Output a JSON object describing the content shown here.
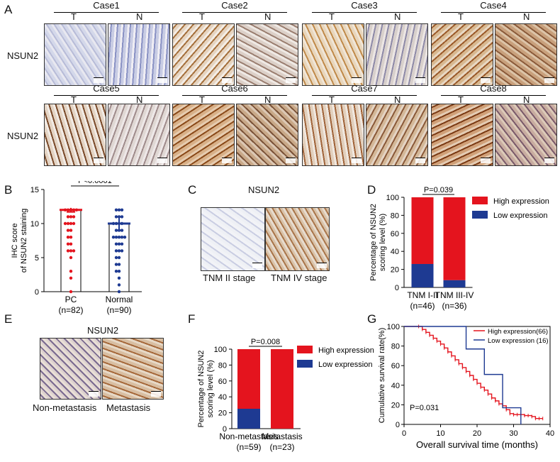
{
  "panel_letters": [
    "A",
    "B",
    "C",
    "D",
    "E",
    "F",
    "G"
  ],
  "panelA": {
    "row_label": "NSUN2",
    "t_label": "T",
    "n_label": "N",
    "cases": [
      "Case1",
      "Case2",
      "Case3",
      "Case4",
      "Case5",
      "Case6",
      "Case7",
      "Case8"
    ]
  },
  "panelC": {
    "title": "NSUN2",
    "labels": [
      "TNM II stage",
      "TNM IV stage"
    ]
  },
  "panelE": {
    "title": "NSUN2",
    "labels": [
      "Non-metastasis",
      "Metastasis"
    ]
  },
  "colors": {
    "high": "#e4141e",
    "low": "#1e3a92",
    "stain_brown": "#9a5a2a",
    "stain_blue": "#6f78b4"
  },
  "chart_data": [
    {
      "id": "B",
      "type": "scatter",
      "ylabel": "IHC score of NSUN2 staining",
      "ylabel_lines": [
        "IHC score",
        "of NSUN2 staining"
      ],
      "ylim": [
        0,
        15
      ],
      "yticks": [
        "0",
        "5",
        "10",
        "15"
      ],
      "categories": [
        "PC",
        "Normal"
      ],
      "category_n": [
        "(n=82)",
        "(n=90)"
      ],
      "p_label": "P<0.0001",
      "series": [
        {
          "name": "PC",
          "mean": 12,
          "error": 0.3,
          "values": [
            12,
            12,
            12,
            12,
            12,
            11,
            11,
            11,
            10,
            10,
            10,
            10,
            9,
            9,
            8,
            8,
            7,
            7,
            6,
            6,
            6,
            5,
            3,
            2,
            0
          ]
        },
        {
          "name": "Normal",
          "mean": 10,
          "error": 1.0,
          "values": [
            12,
            12,
            12,
            11,
            11,
            11,
            10,
            10,
            10,
            10,
            9,
            9,
            9,
            8,
            8,
            8,
            8,
            8,
            7,
            7,
            7,
            6,
            6,
            6,
            5,
            5,
            4,
            4,
            3,
            3,
            2,
            1,
            0
          ]
        }
      ]
    },
    {
      "id": "D",
      "type": "bar",
      "stacked": true,
      "ylabel": "Percentage of NSUN2 scoring level (%)",
      "ylabel_lines": [
        "Percentage of NSUN2",
        "scoring level (%)"
      ],
      "ylim": [
        0,
        100
      ],
      "yticks": [
        "0",
        "20",
        "40",
        "60",
        "80",
        "100"
      ],
      "categories": [
        "TNM I-II",
        "TNM III-IV"
      ],
      "category_n": [
        "(n=46)",
        "(n=36)"
      ],
      "p_label": "P=0.039",
      "legend": [
        "High expression",
        "Low expression"
      ],
      "series": [
        {
          "name": "Low expression",
          "values": [
            26,
            8
          ]
        },
        {
          "name": "High expression",
          "values": [
            74,
            92
          ]
        }
      ]
    },
    {
      "id": "F",
      "type": "bar",
      "stacked": true,
      "ylabel": "Percentage of NSUN2 scoring level (%)",
      "ylabel_lines": [
        "Percentage of NSUN2",
        "scoring level (%)"
      ],
      "ylim": [
        0,
        100
      ],
      "yticks": [
        "0",
        "20",
        "40",
        "60",
        "80",
        "100"
      ],
      "categories": [
        "Non-metastasis",
        "Metastasis"
      ],
      "category_n": [
        "(n=59)",
        "(n=23)"
      ],
      "p_label": "P=0.008",
      "legend": [
        "High expression",
        "Low expression"
      ],
      "series": [
        {
          "name": "Low expression",
          "values": [
            25,
            0
          ]
        },
        {
          "name": "High expression",
          "values": [
            75,
            100
          ]
        }
      ]
    },
    {
      "id": "G",
      "type": "line",
      "xlabel": "Overall survival time (months)",
      "ylabel": "Cumulative survival rate(%)",
      "xlim": [
        0,
        40
      ],
      "ylim": [
        0,
        100
      ],
      "xticks": [
        "0",
        "10",
        "20",
        "30",
        "40"
      ],
      "yticks": [
        "0",
        "20",
        "40",
        "60",
        "80",
        "100"
      ],
      "p_label": "P=0.031",
      "legend": [
        "High expression(66)",
        "Low expression (16)"
      ],
      "series": [
        {
          "name": "High expression(66)",
          "x": [
            0,
            4,
            5,
            6,
            7,
            8,
            9,
            10,
            11,
            12,
            13,
            14,
            15,
            16,
            17,
            18,
            19,
            20,
            21,
            22,
            23,
            24,
            25,
            26,
            27,
            28,
            29,
            30,
            31,
            32,
            33,
            34,
            35,
            36,
            37,
            38
          ],
          "y": [
            100,
            100,
            97,
            94,
            91,
            88,
            85,
            82,
            78,
            74,
            70,
            66,
            62,
            58,
            54,
            50,
            46,
            42,
            38,
            35,
            31,
            27,
            24,
            21,
            19,
            15,
            11,
            10,
            10,
            10,
            9,
            9,
            8,
            6,
            6,
            6
          ]
        },
        {
          "name": "Low expression (16)",
          "x": [
            0,
            16,
            17,
            21,
            22,
            26,
            27,
            31,
            32
          ],
          "y": [
            100,
            100,
            77,
            77,
            51,
            51,
            17,
            17,
            0
          ]
        }
      ]
    }
  ]
}
